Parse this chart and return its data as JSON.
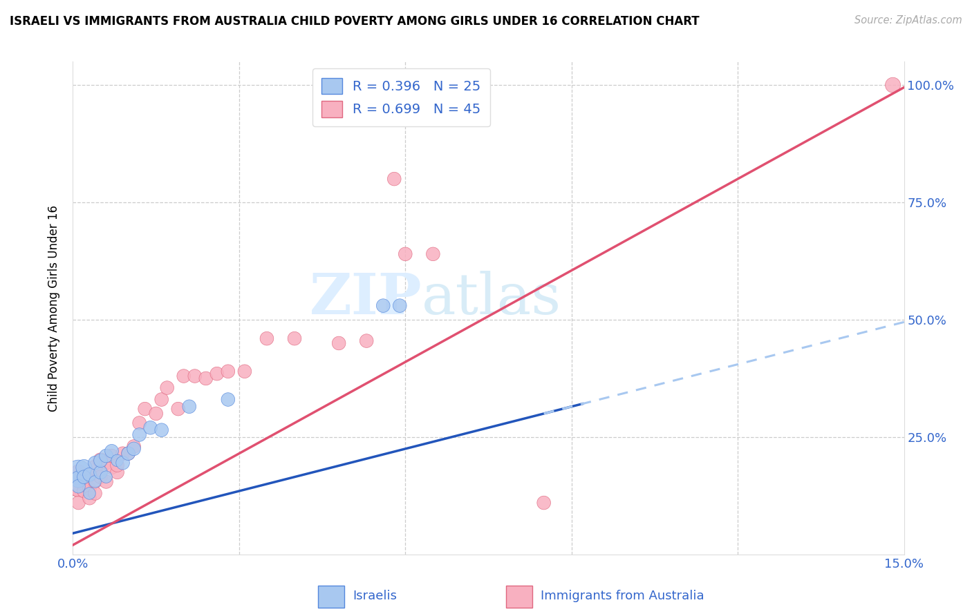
{
  "title": "ISRAELI VS IMMIGRANTS FROM AUSTRALIA CHILD POVERTY AMONG GIRLS UNDER 16 CORRELATION CHART",
  "source": "Source: ZipAtlas.com",
  "ylabel": "Child Poverty Among Girls Under 16",
  "xlim": [
    0,
    0.15
  ],
  "ylim": [
    0,
    1.05
  ],
  "R_blue": 0.396,
  "N_blue": 25,
  "R_pink": 0.699,
  "N_pink": 45,
  "blue_scatter_color": "#a8c8f0",
  "blue_edge_color": "#5588dd",
  "pink_scatter_color": "#f8b0c0",
  "pink_edge_color": "#e06880",
  "line_blue_color": "#2255bb",
  "line_pink_color": "#e05070",
  "grid_color": "#cccccc",
  "axis_label_color": "#3366cc",
  "watermark_color": "#ddeeff",
  "blue_line_intercept": 0.045,
  "blue_line_slope": 3.0,
  "pink_line_intercept": 0.02,
  "pink_line_slope": 6.5,
  "israelis_x": [
    0.001,
    0.001,
    0.001,
    0.002,
    0.002,
    0.003,
    0.003,
    0.004,
    0.004,
    0.005,
    0.005,
    0.006,
    0.006,
    0.007,
    0.008,
    0.009,
    0.01,
    0.011,
    0.012,
    0.014,
    0.016,
    0.021,
    0.028,
    0.056,
    0.059
  ],
  "israelis_y": [
    0.175,
    0.16,
    0.145,
    0.185,
    0.165,
    0.13,
    0.17,
    0.195,
    0.155,
    0.175,
    0.2,
    0.165,
    0.21,
    0.22,
    0.2,
    0.195,
    0.215,
    0.225,
    0.255,
    0.27,
    0.265,
    0.315,
    0.33,
    0.53,
    0.53
  ],
  "israelis_size": [
    650,
    300,
    200,
    280,
    200,
    160,
    200,
    200,
    160,
    200,
    200,
    160,
    200,
    200,
    160,
    200,
    200,
    200,
    200,
    200,
    200,
    200,
    200,
    200,
    200
  ],
  "immigrants_x": [
    0.001,
    0.001,
    0.001,
    0.001,
    0.002,
    0.002,
    0.002,
    0.003,
    0.003,
    0.003,
    0.004,
    0.004,
    0.004,
    0.005,
    0.005,
    0.006,
    0.006,
    0.007,
    0.007,
    0.008,
    0.008,
    0.009,
    0.01,
    0.011,
    0.012,
    0.013,
    0.015,
    0.016,
    0.017,
    0.019,
    0.02,
    0.022,
    0.024,
    0.026,
    0.028,
    0.031,
    0.035,
    0.04,
    0.048,
    0.053,
    0.058,
    0.06,
    0.065,
    0.085,
    0.148
  ],
  "immigrants_y": [
    0.15,
    0.14,
    0.175,
    0.11,
    0.155,
    0.135,
    0.165,
    0.17,
    0.14,
    0.12,
    0.185,
    0.155,
    0.13,
    0.2,
    0.165,
    0.195,
    0.155,
    0.185,
    0.21,
    0.175,
    0.19,
    0.215,
    0.215,
    0.23,
    0.28,
    0.31,
    0.3,
    0.33,
    0.355,
    0.31,
    0.38,
    0.38,
    0.375,
    0.385,
    0.39,
    0.39,
    0.46,
    0.46,
    0.45,
    0.455,
    0.8,
    0.64,
    0.64,
    0.11,
    1.0
  ],
  "immigrants_size": [
    700,
    300,
    250,
    200,
    300,
    200,
    200,
    250,
    200,
    200,
    250,
    200,
    200,
    250,
    200,
    200,
    200,
    200,
    200,
    200,
    200,
    200,
    200,
    200,
    200,
    200,
    200,
    200,
    200,
    200,
    200,
    200,
    200,
    200,
    200,
    200,
    200,
    200,
    200,
    200,
    200,
    200,
    200,
    200,
    250
  ]
}
